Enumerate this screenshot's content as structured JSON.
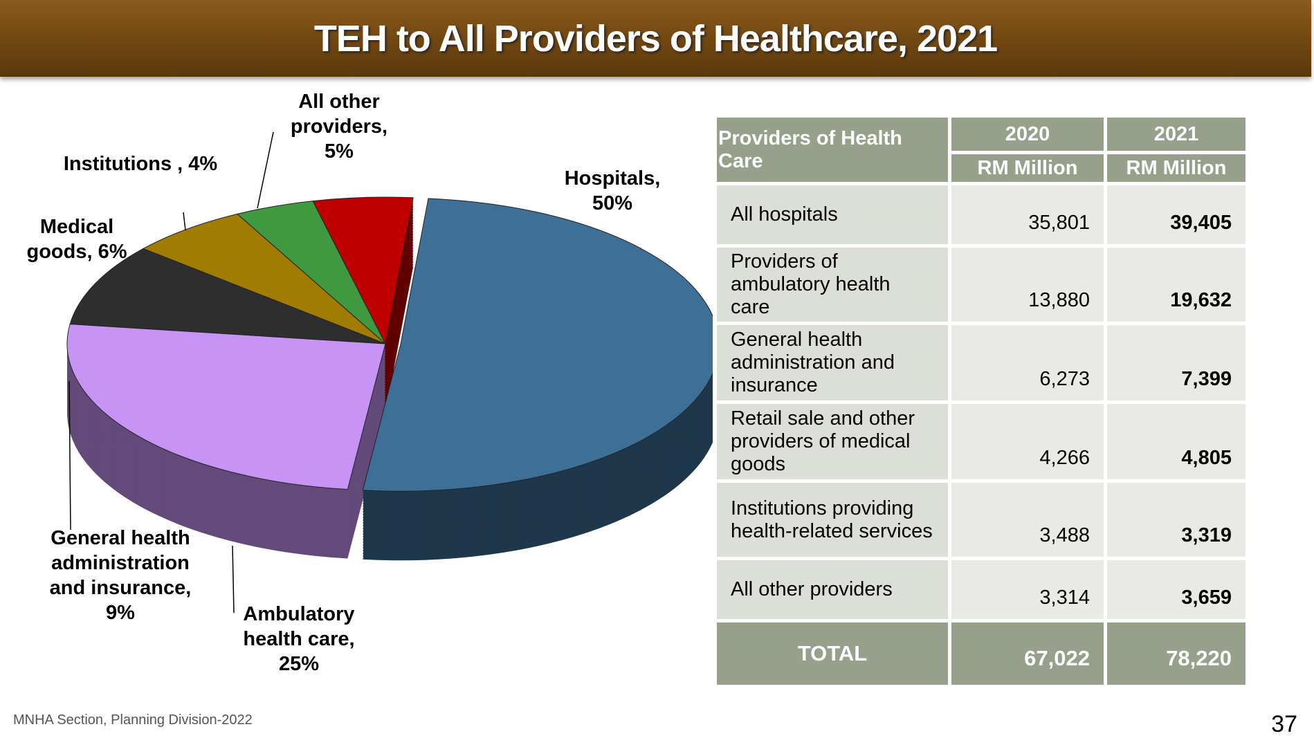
{
  "title": "TEH to All Providers of Healthcare, 2021",
  "chart_data": {
    "type": "pie",
    "categories": [
      "Hospitals,",
      "Ambulatory health care,",
      "General health administration and insurance,",
      "Medical goods,",
      "Institutions ,",
      "All other providers,"
    ],
    "values": [
      50,
      25,
      9,
      6,
      4,
      5
    ],
    "value_labels": [
      "50%",
      "25%",
      "9%",
      "6%",
      "4%",
      "5%"
    ],
    "colors": [
      "#3d6f97",
      "#c794f5",
      "#2e2e2e",
      "#a07c00",
      "#3f9a3f",
      "#c00000"
    ]
  },
  "table": {
    "header": [
      "Providers of Health Care",
      "2020",
      "2021"
    ],
    "units": [
      "RM Million",
      "RM Million"
    ],
    "rows": [
      [
        "All hospitals",
        "35,801",
        "39,405"
      ],
      [
        "Providers of ambulatory health care",
        "13,880",
        "19,632"
      ],
      [
        "General health administration and insurance",
        "6,273",
        "7,399"
      ],
      [
        "Retail sale and other providers of medical goods",
        "4,266",
        "4,805"
      ],
      [
        "Institutions providing health-related services",
        "3,488",
        "3,319"
      ],
      [
        "All other providers",
        "3,314",
        "3,659"
      ]
    ],
    "total": [
      "TOTAL",
      "67,022",
      "78,220"
    ]
  },
  "footer": "MNHA Section, Planning Division-2022",
  "page_number": "37"
}
